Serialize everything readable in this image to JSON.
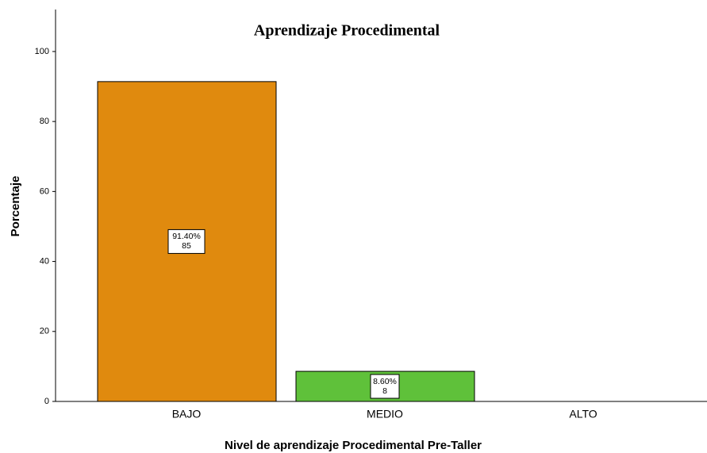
{
  "chart_data": {
    "type": "bar",
    "title": "Aprendizaje Procedimental",
    "x_label": "Nivel de aprendizaje Procedimental Pre-Taller",
    "y_label": "Porcentaje",
    "categories": [
      "BAJO",
      "MEDIO",
      "ALTO"
    ],
    "values": [
      91.4,
      8.6,
      null
    ],
    "value_labels": [
      "91.40%",
      "8.60%",
      null
    ],
    "counts": [
      85,
      8,
      null
    ],
    "colors": [
      "#e08a0e",
      "#5fc13a",
      "#5fc13a"
    ],
    "ylim": [
      0,
      112
    ],
    "yticks": [
      0,
      20,
      40,
      60,
      80,
      100
    ],
    "grid": false
  }
}
